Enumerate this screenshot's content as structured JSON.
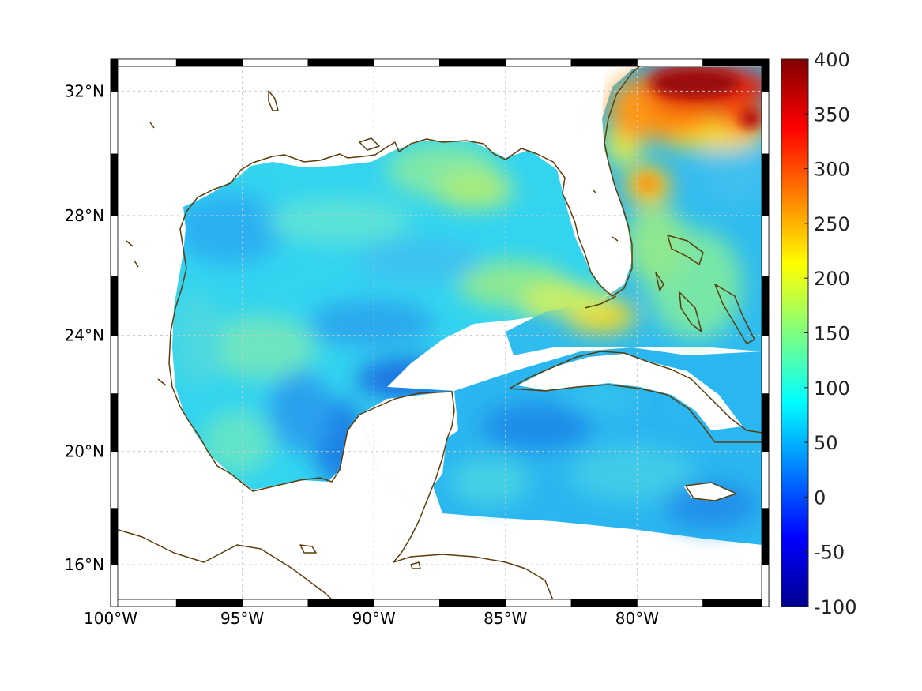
{
  "map": {
    "region": "Gulf of Mexico and Caribbean",
    "projection": "mercator",
    "lon_range": [
      -100,
      -75
    ],
    "lat_range": [
      14.5,
      33
    ],
    "lat_ticks": [
      {
        "value": 32,
        "label": "32°N"
      },
      {
        "value": 28,
        "label": "28°N"
      },
      {
        "value": 24,
        "label": "24°N"
      },
      {
        "value": 20,
        "label": "20°N"
      },
      {
        "value": 16,
        "label": "16°N"
      }
    ],
    "lon_ticks": [
      {
        "value": -100,
        "label": "100°W"
      },
      {
        "value": -95,
        "label": "95°W"
      },
      {
        "value": -90,
        "label": "90°W"
      },
      {
        "value": -85,
        "label": "85°W"
      },
      {
        "value": -80,
        "label": "80°W"
      }
    ],
    "grid": true,
    "coastline_color": "#5c3d0c",
    "frame_style": "alternating black/white"
  },
  "colorbar": {
    "colormap": "jet",
    "min": -100,
    "max": 400,
    "ticks": [
      "400",
      "350",
      "300",
      "250",
      "200",
      "150",
      "100",
      "50",
      "0",
      "-50",
      "-100"
    ]
  },
  "field_summary": {
    "typical_gulf_value": 100,
    "low_region": "Campeche Bank / Yucatan (~30-60)",
    "high_region": "Off Georgia/Carolinas Gulf Stream (~300-400)",
    "loop_current_region": "South of Florida Keys (~200)"
  }
}
